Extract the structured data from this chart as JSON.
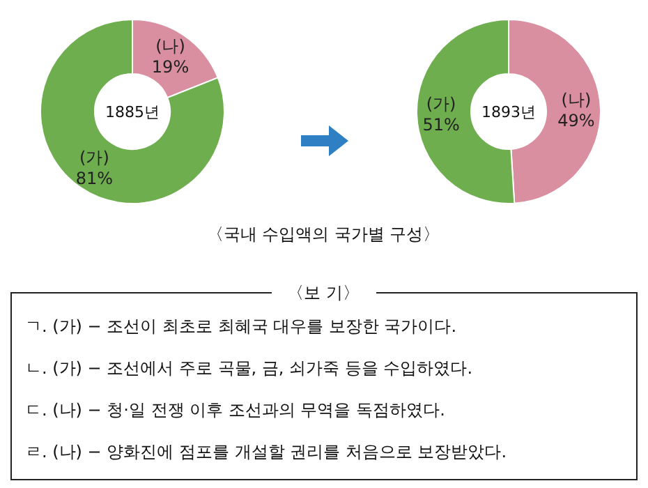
{
  "chart_data": [
    {
      "type": "donut",
      "title": "1885년",
      "categories": [
        "(나)",
        "(가)"
      ],
      "values": [
        19,
        81
      ],
      "colors": [
        "#d98fa0",
        "#6fae4f"
      ],
      "value_labels": [
        "19%",
        "81%"
      ],
      "annotations": [
        "〈국내 수입액의 국가별 구성〉"
      ]
    },
    {
      "type": "donut",
      "title": "1893년",
      "categories": [
        "(나)",
        "(가)"
      ],
      "values": [
        49,
        51
      ],
      "colors": [
        "#d98fa0",
        "#6fae4f"
      ],
      "value_labels": [
        "49%",
        "51%"
      ]
    },
    {
      "type": "other",
      "title": "〈보 기〉",
      "annotations": [
        "ㄱ. (가) − 조선이 최초로 최혜국 대우를 보장한 국가이다.",
        "ㄴ. (가) − 조선에서 주로 곡물, 금, 쇠가죽 등을 수입하였다.",
        "ㄷ. (나) − 청·일 전쟁 이후 조선과의 무역을 독점하였다.",
        "ㄹ. (나) − 양화진에 점포를 개설할 권리를 처음으로 보장받았다."
      ]
    }
  ]
}
